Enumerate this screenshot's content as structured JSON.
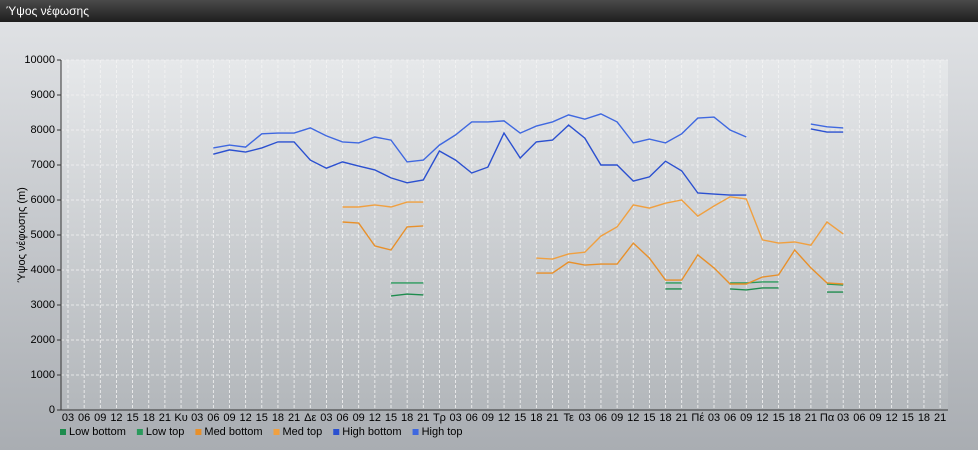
{
  "chart_data": {
    "type": "line",
    "title": "Ύψος νέφωσης",
    "y_label": "Ύψος νέφωσης (m)",
    "categories": [
      "03",
      "06",
      "09",
      "12",
      "15",
      "18",
      "21",
      "Κυ",
      "03",
      "06",
      "09",
      "12",
      "15",
      "18",
      "21",
      "Δε",
      "03",
      "06",
      "09",
      "12",
      "15",
      "18",
      "21",
      "Τρ",
      "03",
      "06",
      "09",
      "12",
      "15",
      "18",
      "21",
      "Τε",
      "03",
      "06",
      "09",
      "12",
      "15",
      "18",
      "21",
      "Πέ",
      "03",
      "06",
      "09",
      "12",
      "15",
      "18",
      "21",
      "Πα",
      "03",
      "06",
      "09",
      "12",
      "15",
      "18",
      "21"
    ],
    "ylim": [
      0,
      10000
    ],
    "yticks": [
      0,
      1000,
      2000,
      3000,
      4000,
      5000,
      6000,
      7000,
      8000,
      9000,
      10000
    ],
    "grid": true,
    "series": [
      {
        "name": "Low bottom",
        "color": "#1e8c4e",
        "values": [
          null,
          null,
          null,
          null,
          null,
          null,
          null,
          null,
          null,
          null,
          null,
          null,
          null,
          null,
          null,
          null,
          null,
          null,
          null,
          null,
          3260,
          3310,
          3290,
          null,
          null,
          null,
          null,
          null,
          null,
          null,
          null,
          null,
          null,
          null,
          null,
          null,
          null,
          3460,
          3460,
          null,
          null,
          3460,
          3430,
          3490,
          3490,
          null,
          null,
          3370,
          3370,
          null,
          null,
          null,
          null,
          null,
          null
        ]
      },
      {
        "name": "Low top",
        "color": "#2a9a5c",
        "values": [
          null,
          null,
          null,
          null,
          null,
          null,
          null,
          null,
          null,
          null,
          null,
          null,
          null,
          null,
          null,
          null,
          null,
          null,
          null,
          null,
          3630,
          3630,
          3630,
          null,
          null,
          null,
          null,
          null,
          null,
          null,
          null,
          null,
          null,
          null,
          null,
          null,
          null,
          3630,
          3630,
          null,
          null,
          3630,
          3630,
          3660,
          3660,
          null,
          null,
          3600,
          3570,
          null,
          null,
          null,
          null,
          null,
          null
        ]
      },
      {
        "name": "Med bottom",
        "color": "#e8902a",
        "values": [
          null,
          null,
          null,
          null,
          null,
          null,
          null,
          null,
          null,
          null,
          null,
          null,
          null,
          null,
          null,
          null,
          null,
          5370,
          5340,
          4690,
          4570,
          5230,
          5260,
          null,
          null,
          null,
          null,
          null,
          null,
          3910,
          3910,
          4230,
          4140,
          4170,
          4170,
          4770,
          4340,
          3710,
          3710,
          4430,
          4060,
          3600,
          3600,
          3800,
          3860,
          4570,
          4060,
          3630,
          3600,
          null,
          null,
          null,
          null,
          null,
          null
        ]
      },
      {
        "name": "Med top",
        "color": "#f0a040",
        "values": [
          null,
          null,
          null,
          null,
          null,
          null,
          null,
          null,
          null,
          null,
          null,
          null,
          null,
          null,
          null,
          null,
          null,
          5800,
          5800,
          5860,
          5800,
          5940,
          5940,
          null,
          null,
          null,
          null,
          null,
          null,
          4340,
          4310,
          4460,
          4510,
          4970,
          5230,
          5860,
          5770,
          5910,
          6000,
          5540,
          5830,
          6090,
          6030,
          4860,
          4770,
          4800,
          4710,
          5370,
          5030,
          null,
          null,
          null,
          null,
          null,
          null
        ]
      },
      {
        "name": "High bottom",
        "color": "#2b50d0",
        "values": [
          null,
          null,
          null,
          null,
          null,
          null,
          null,
          null,
          null,
          7310,
          7430,
          7370,
          7490,
          7660,
          7660,
          7140,
          6910,
          7090,
          6970,
          6860,
          6630,
          6490,
          6570,
          7400,
          7140,
          6770,
          6940,
          7910,
          7200,
          7660,
          7710,
          8140,
          7770,
          7000,
          7000,
          6540,
          6660,
          7110,
          6830,
          6200,
          6170,
          6140,
          6140,
          null,
          null,
          null,
          8030,
          7940,
          7940,
          null,
          null,
          null,
          null,
          null,
          null
        ]
      },
      {
        "name": "High top",
        "color": "#3f68e0",
        "values": [
          null,
          null,
          null,
          null,
          null,
          null,
          null,
          null,
          null,
          7490,
          7570,
          7510,
          7890,
          7910,
          7910,
          8060,
          7830,
          7660,
          7630,
          7800,
          7710,
          7090,
          7140,
          7570,
          7860,
          8230,
          8230,
          8260,
          7910,
          8110,
          8230,
          8430,
          8310,
          8460,
          8230,
          7630,
          7740,
          7630,
          7890,
          8340,
          8370,
          8000,
          7800,
          null,
          null,
          null,
          8170,
          8090,
          8060,
          null,
          null,
          null,
          null,
          null,
          null
        ]
      }
    ]
  }
}
